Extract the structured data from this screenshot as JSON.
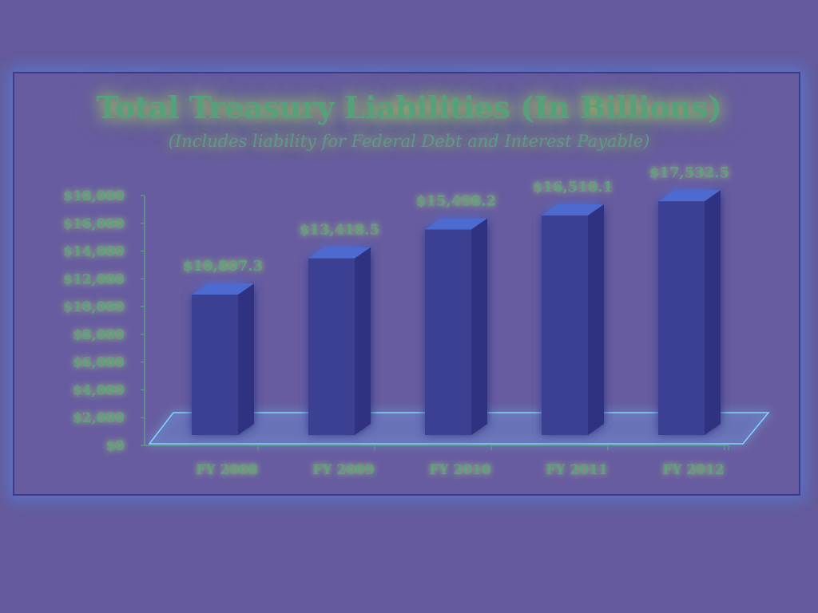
{
  "colors": {
    "background": "#645a9b",
    "bar_front": "#3a3f93",
    "bar_side": "#2f3380",
    "bar_top": "#4d6ad0",
    "text": "#5fa17e",
    "glow": "#6fd0ff"
  },
  "chart_data": {
    "type": "bar",
    "title": "Total Treasury Liabilities (In Billions)",
    "subtitle": "(Includes liability for Federal Debt and Interest Payable)",
    "categories": [
      "FY 2008",
      "FY 2009",
      "FY 2010",
      "FY 2011",
      "FY 2012"
    ],
    "values": [
      10807.3,
      13418.5,
      15498.2,
      16510.1,
      17532.5
    ],
    "value_labels": [
      "$10,807.3",
      "$13,418.5",
      "$15,498.2",
      "$16,510.1",
      "$17,532.5"
    ],
    "yticks": [
      0,
      2000,
      4000,
      6000,
      8000,
      10000,
      12000,
      14000,
      16000,
      18000
    ],
    "ytick_labels": [
      "$0",
      "$2,000",
      "$4,000",
      "$6,000",
      "$8,000",
      "$10,000",
      "$12,000",
      "$14,000",
      "$16,000",
      "$18,000"
    ],
    "ylim": [
      0,
      18000
    ],
    "xlabel": "",
    "ylabel": "",
    "grid": false,
    "legend": "none",
    "style": "3d-columns"
  }
}
